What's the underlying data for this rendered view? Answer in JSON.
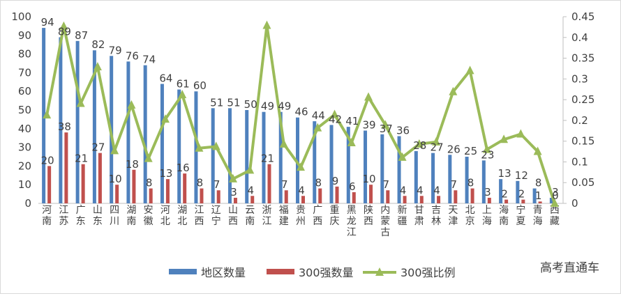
{
  "chart_data": {
    "type": "bar",
    "categories": [
      "河南",
      "江苏",
      "广东",
      "山东",
      "四川",
      "湖南",
      "安徽",
      "河北",
      "湖北",
      "江西",
      "辽宁",
      "山西",
      "云南",
      "浙江",
      "福建",
      "贵州",
      "广西",
      "重庆",
      "黑龙江",
      "陕西",
      "内蒙古",
      "新疆",
      "甘肃",
      "吉林",
      "天津",
      "北京",
      "上海",
      "海南",
      "宁夏",
      "青海",
      "西藏"
    ],
    "series": [
      {
        "name": "地区数量",
        "kind": "bar",
        "axis": "left",
        "color": "#4f81bd",
        "values": [
          94,
          89,
          87,
          82,
          79,
          76,
          74,
          64,
          61,
          60,
          51,
          51,
          50,
          49,
          49,
          46,
          44,
          42,
          41,
          39,
          37,
          36,
          28,
          27,
          26,
          25,
          23,
          13,
          12,
          8,
          3
        ]
      },
      {
        "name": "300强数量",
        "kind": "bar",
        "axis": "left",
        "color": "#c0504d",
        "values": [
          20,
          38,
          21,
          27,
          10,
          18,
          8,
          13,
          16,
          8,
          7,
          3,
          4,
          21,
          7,
          4,
          8,
          9,
          6,
          10,
          7,
          4,
          4,
          4,
          7,
          8,
          3,
          2,
          2,
          1,
          0
        ]
      },
      {
        "name": "300强比例",
        "kind": "line",
        "axis": "right",
        "color": "#9bbb59",
        "values": [
          0.213,
          0.427,
          0.241,
          0.329,
          0.127,
          0.237,
          0.108,
          0.203,
          0.262,
          0.133,
          0.137,
          0.059,
          0.08,
          0.429,
          0.143,
          0.087,
          0.182,
          0.214,
          0.146,
          0.256,
          0.189,
          0.111,
          0.143,
          0.148,
          0.269,
          0.32,
          0.13,
          0.154,
          0.167,
          0.125,
          0
        ]
      }
    ],
    "y_left": {
      "min": 0,
      "max": 100,
      "step": 10,
      "ticks": [
        "0",
        "10",
        "20",
        "30",
        "40",
        "50",
        "60",
        "70",
        "80",
        "90",
        "100"
      ]
    },
    "y_right": {
      "min": 0,
      "max": 0.45,
      "step": 0.05,
      "ticks": [
        "0",
        "0.05",
        "0.1",
        "0.15",
        "0.2",
        "0.25",
        "0.3",
        "0.35",
        "0.4",
        "0.45"
      ]
    },
    "bar_labels_primary": [
      "94",
      "89",
      "87",
      "82",
      "79",
      "76",
      "74",
      "64",
      "61",
      "60",
      "51",
      "51",
      "50",
      "49",
      "49",
      "46",
      "44",
      "42",
      "41",
      "39",
      "37",
      "36",
      "28",
      "27",
      "26",
      "25",
      "23",
      "13",
      "12",
      "8",
      "3"
    ],
    "bar_labels_secondary": [
      "20",
      "38",
      "21",
      "27",
      "10",
      "18",
      "8",
      "13",
      "16",
      "8",
      "7",
      "3",
      "4",
      "21",
      "7",
      "4",
      "8",
      "9",
      "6",
      "10",
      "7",
      "4",
      "4",
      "4",
      "7",
      "8",
      "3",
      "2",
      "2",
      "1",
      "0"
    ],
    "grid": false,
    "legend_position": "bottom",
    "watermark": "高考直通车"
  }
}
